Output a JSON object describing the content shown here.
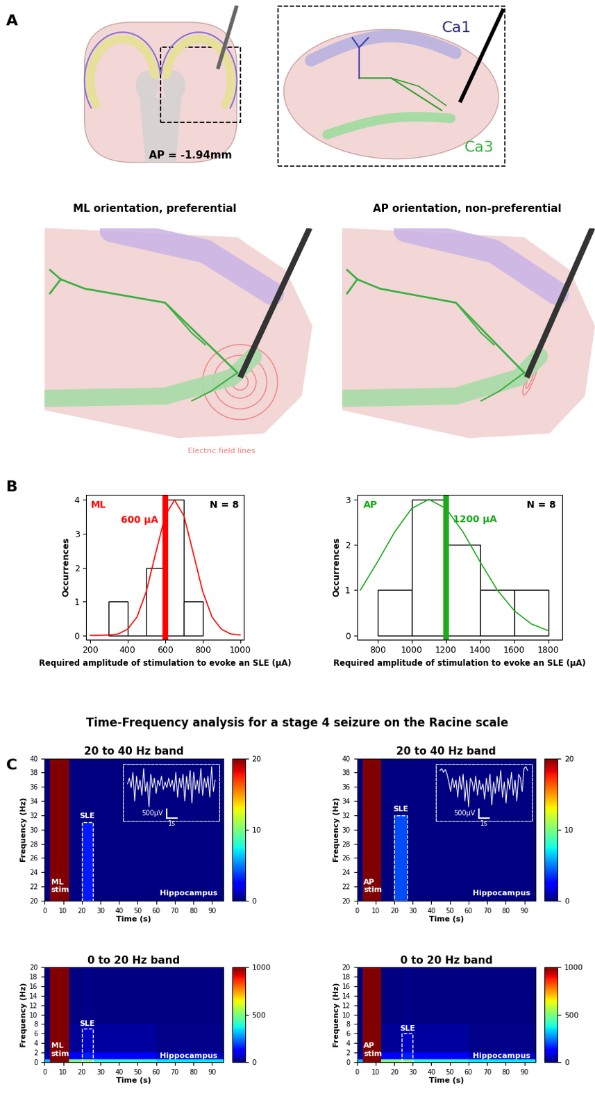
{
  "panel_labels": [
    "A",
    "B",
    "C"
  ],
  "diagram": {
    "section_label": "AP = -1.94mm",
    "regions": [
      "Ca1",
      "Ca3"
    ],
    "orientations": [
      "ML orientation, preferential",
      "AP orientation, non-preferential"
    ],
    "field_label": "Electric field lines"
  },
  "section_title": "Time-Frequency analysis for a stage 4 seizure on the Racine scale",
  "chart_data": [
    {
      "type": "histogram",
      "group_label": "ML",
      "color": "#ff0000",
      "n_label": "N = 8",
      "bins": [
        300,
        400,
        500,
        600,
        700,
        800
      ],
      "counts": [
        1,
        0,
        2,
        4,
        1
      ],
      "threshold": {
        "value": 600,
        "label": "600 µA"
      },
      "fit": {
        "x": [
          200,
          250,
          300,
          350,
          400,
          450,
          500,
          550,
          600,
          650,
          700,
          750,
          800,
          850,
          900,
          950,
          1000
        ],
        "values": [
          0.0,
          0.0,
          0.01,
          0.04,
          0.18,
          0.54,
          1.3,
          2.43,
          3.53,
          4.0,
          3.53,
          2.43,
          1.3,
          0.54,
          0.18,
          0.04,
          0.01
        ]
      },
      "x_label": "Required amplitude of stimulation to evoke an SLE (µA)",
      "y_label": "Occurrences",
      "xlim": [
        180,
        1020
      ],
      "xticks": [
        200,
        400,
        600,
        800,
        1000
      ],
      "ylim": [
        -0.12,
        4.15
      ],
      "yticks": [
        0,
        1,
        2,
        3,
        4
      ]
    },
    {
      "type": "histogram",
      "group_label": "AP",
      "color": "#1aaa1a",
      "n_label": "N = 8",
      "bins": [
        800,
        1000,
        1200,
        1400,
        1600,
        1800
      ],
      "counts": [
        1,
        3,
        2,
        1,
        1
      ],
      "threshold": {
        "value": 1200,
        "label": "1200 µA"
      },
      "fit": {
        "x": [
          700,
          800,
          900,
          1000,
          1100,
          1200,
          1300,
          1400,
          1500,
          1600,
          1700,
          1800
        ],
        "values": [
          1.0,
          1.62,
          2.28,
          2.8,
          3.0,
          2.8,
          2.28,
          1.62,
          1.0,
          0.54,
          0.25,
          0.1
        ]
      },
      "x_label": "Required amplitude of stimulation to evoke an SLE (µA)",
      "y_label": "Occurrences",
      "xlim": [
        680,
        1880
      ],
      "xticks": [
        800,
        1000,
        1200,
        1400,
        1600,
        1800
      ],
      "ylim": [
        -0.09,
        3.1
      ],
      "yticks": [
        0,
        1,
        2,
        3
      ]
    },
    {
      "type": "heatmap",
      "title": "20 to 40 Hz band",
      "x_label": "Time (s)",
      "y_label": "Frequency (Hz)",
      "xlim": [
        0,
        96
      ],
      "xticks": [
        0,
        10,
        20,
        30,
        40,
        50,
        60,
        70,
        80,
        90
      ],
      "ylim": [
        20,
        40
      ],
      "yticks": [
        20,
        22,
        24,
        26,
        28,
        30,
        32,
        34,
        36,
        38,
        40
      ],
      "time_edges": [
        0,
        3,
        13,
        20,
        26,
        96
      ],
      "freq_edges": [
        20,
        31,
        40
      ],
      "cells": [
        [
          0,
          20,
          0,
          3,
          0
        ],
        [
          0,
          20,
          0,
          0,
          0
        ]
      ],
      "colorbar": {
        "range": [
          0,
          20
        ],
        "ticks": [
          0,
          10,
          20
        ]
      },
      "stim": {
        "label": "ML\nstim",
        "time": [
          3,
          13
        ]
      },
      "sle_window": {
        "label": "SLE",
        "time": [
          20,
          26
        ],
        "freq": [
          20,
          31
        ]
      },
      "region_label": "Hippocampus",
      "inset": {
        "trace": [
          0,
          300,
          -200,
          600,
          -900,
          400,
          -300,
          200,
          -600,
          800,
          -400,
          100,
          -1200,
          500,
          -200,
          300,
          -500,
          200,
          -100,
          400,
          -300,
          100,
          -200,
          300,
          -150,
          200,
          -400,
          600,
          -700,
          300,
          -200,
          500,
          -900,
          400,
          -300,
          700,
          -1000,
          600,
          -300,
          200,
          -500,
          800,
          -600,
          300,
          -200,
          400,
          -700,
          900,
          -400,
          200
        ],
        "dt": 0.17,
        "scale_bar": {
          "amplitude": 500,
          "amplitude_label": "500µV",
          "time": 1,
          "time_label": "1s"
        }
      }
    },
    {
      "type": "heatmap",
      "title": "20 to 40 Hz band",
      "x_label": "Time (s)",
      "y_label": "Frequency (Hz)",
      "xlim": [
        0,
        96
      ],
      "xticks": [
        0,
        10,
        20,
        30,
        40,
        50,
        60,
        70,
        80,
        90
      ],
      "ylim": [
        20,
        40
      ],
      "yticks": [
        20,
        22,
        24,
        26,
        28,
        30,
        32,
        34,
        36,
        38,
        40
      ],
      "time_edges": [
        0,
        3,
        13,
        20,
        27,
        96
      ],
      "freq_edges": [
        20,
        32,
        40
      ],
      "cells": [
        [
          0,
          20,
          0,
          4,
          0
        ],
        [
          0,
          20,
          0,
          0,
          0
        ]
      ],
      "colorbar": {
        "range": [
          0,
          20
        ],
        "ticks": [
          0,
          10,
          20
        ]
      },
      "stim": {
        "label": "AP\nstim",
        "time": [
          3,
          13
        ]
      },
      "sle_window": {
        "label": "SLE",
        "time": [
          20,
          27
        ],
        "freq": [
          20,
          32
        ]
      },
      "region_label": "Hippocampus",
      "inset": {
        "trace": [
          800,
          900,
          700,
          850,
          600,
          200,
          -300,
          400,
          -100,
          300,
          -600,
          500,
          -200,
          600,
          -800,
          300,
          -1100,
          400,
          200,
          -300,
          500,
          -500,
          300,
          -200,
          100,
          -700,
          400,
          -300,
          600,
          -1000,
          200,
          -400,
          500,
          -300,
          800,
          -600,
          200,
          -900,
          400,
          -200,
          700,
          -500,
          300,
          -800,
          600,
          400,
          -300,
          900,
          1000,
          800
        ],
        "dt": 0.17,
        "scale_bar": {
          "amplitude": 500,
          "amplitude_label": "500µV",
          "time": 1,
          "time_label": "1s"
        }
      }
    },
    {
      "type": "heatmap",
      "title": "0 to 20 Hz band",
      "x_label": "Time (s)",
      "y_label": "Frequency (Hz)",
      "xlim": [
        0,
        96
      ],
      "xticks": [
        0,
        10,
        20,
        30,
        40,
        50,
        60,
        70,
        80,
        90
      ],
      "ylim": [
        0,
        20
      ],
      "yticks": [
        0,
        2,
        4,
        6,
        8,
        10,
        12,
        14,
        16,
        18,
        20
      ],
      "time_edges": [
        0,
        3,
        13,
        20,
        26,
        60,
        96
      ],
      "freq_edges": [
        0,
        0.5,
        2,
        8,
        20
      ],
      "cells": [
        [
          300,
          1000,
          500,
          500,
          400,
          350
        ],
        [
          50,
          1000,
          120,
          150,
          120,
          60
        ],
        [
          0,
          1000,
          20,
          60,
          30,
          10
        ],
        [
          0,
          1000,
          0,
          10,
          0,
          0
        ]
      ],
      "colorbar": {
        "range": [
          0,
          1000
        ],
        "ticks": [
          0,
          500,
          1000
        ]
      },
      "stim": {
        "label": "ML\nstim",
        "time": [
          3,
          13
        ]
      },
      "sle_window": {
        "label": "SLE",
        "time": [
          20,
          26
        ],
        "freq": [
          0,
          7
        ]
      },
      "region_label": "Hippocampus"
    },
    {
      "type": "heatmap",
      "title": "0 to 20 Hz band",
      "x_label": "Time (s)",
      "y_label": "Frequency (Hz)",
      "xlim": [
        0,
        96
      ],
      "xticks": [
        0,
        10,
        20,
        30,
        40,
        50,
        60,
        70,
        80,
        90
      ],
      "ylim": [
        0,
        20
      ],
      "yticks": [
        0,
        2,
        4,
        6,
        8,
        10,
        12,
        14,
        16,
        18,
        20
      ],
      "time_edges": [
        0,
        3,
        13,
        24,
        30,
        60,
        96
      ],
      "freq_edges": [
        0,
        0.5,
        2,
        8,
        20
      ],
      "cells": [
        [
          300,
          1000,
          500,
          500,
          400,
          350
        ],
        [
          50,
          1000,
          120,
          150,
          120,
          60
        ],
        [
          0,
          1000,
          20,
          60,
          30,
          10
        ],
        [
          0,
          1000,
          0,
          10,
          0,
          0
        ]
      ],
      "colorbar": {
        "range": [
          0,
          1000
        ],
        "ticks": [
          0,
          500,
          1000
        ]
      },
      "stim": {
        "label": "AP\nstim",
        "time": [
          3,
          13
        ]
      },
      "sle_window": {
        "label": "SLE",
        "time": [
          24,
          30
        ],
        "freq": [
          0,
          6
        ]
      },
      "region_label": "Hippocampus"
    }
  ]
}
